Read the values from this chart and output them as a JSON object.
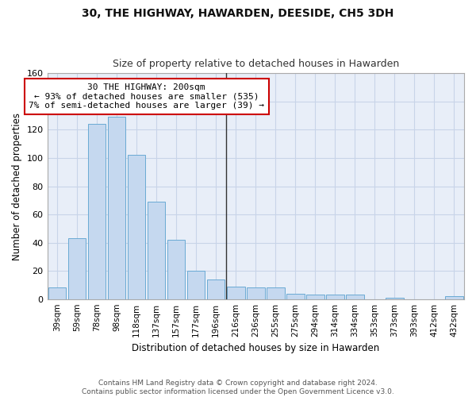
{
  "title": "30, THE HIGHWAY, HAWARDEN, DEESIDE, CH5 3DH",
  "subtitle": "Size of property relative to detached houses in Hawarden",
  "xlabel": "Distribution of detached houses by size in Hawarden",
  "ylabel": "Number of detached properties",
  "bar_color": "#c5d8ef",
  "bar_edge_color": "#6aaad4",
  "grid_color": "#c8d4e8",
  "background_color": "#ffffff",
  "plot_bg_color": "#e8eef8",
  "categories": [
    "39sqm",
    "59sqm",
    "78sqm",
    "98sqm",
    "118sqm",
    "137sqm",
    "157sqm",
    "177sqm",
    "196sqm",
    "216sqm",
    "236sqm",
    "255sqm",
    "275sqm",
    "294sqm",
    "314sqm",
    "334sqm",
    "353sqm",
    "373sqm",
    "393sqm",
    "412sqm",
    "432sqm"
  ],
  "values": [
    8,
    43,
    124,
    129,
    102,
    69,
    42,
    20,
    14,
    9,
    8,
    8,
    4,
    3,
    3,
    3,
    0,
    1,
    0,
    0,
    2
  ],
  "ylim": [
    0,
    160
  ],
  "yticks": [
    0,
    20,
    40,
    60,
    80,
    100,
    120,
    140,
    160
  ],
  "vline_index": 8.5,
  "vline_color": "#333333",
  "annotation_text": "30 THE HIGHWAY: 200sqm\n← 93% of detached houses are smaller (535)\n7% of semi-detached houses are larger (39) →",
  "annotation_box_color": "#ffffff",
  "annotation_box_edge_color": "#cc0000",
  "footer_line1": "Contains HM Land Registry data © Crown copyright and database right 2024.",
  "footer_line2": "Contains public sector information licensed under the Open Government Licence v3.0."
}
